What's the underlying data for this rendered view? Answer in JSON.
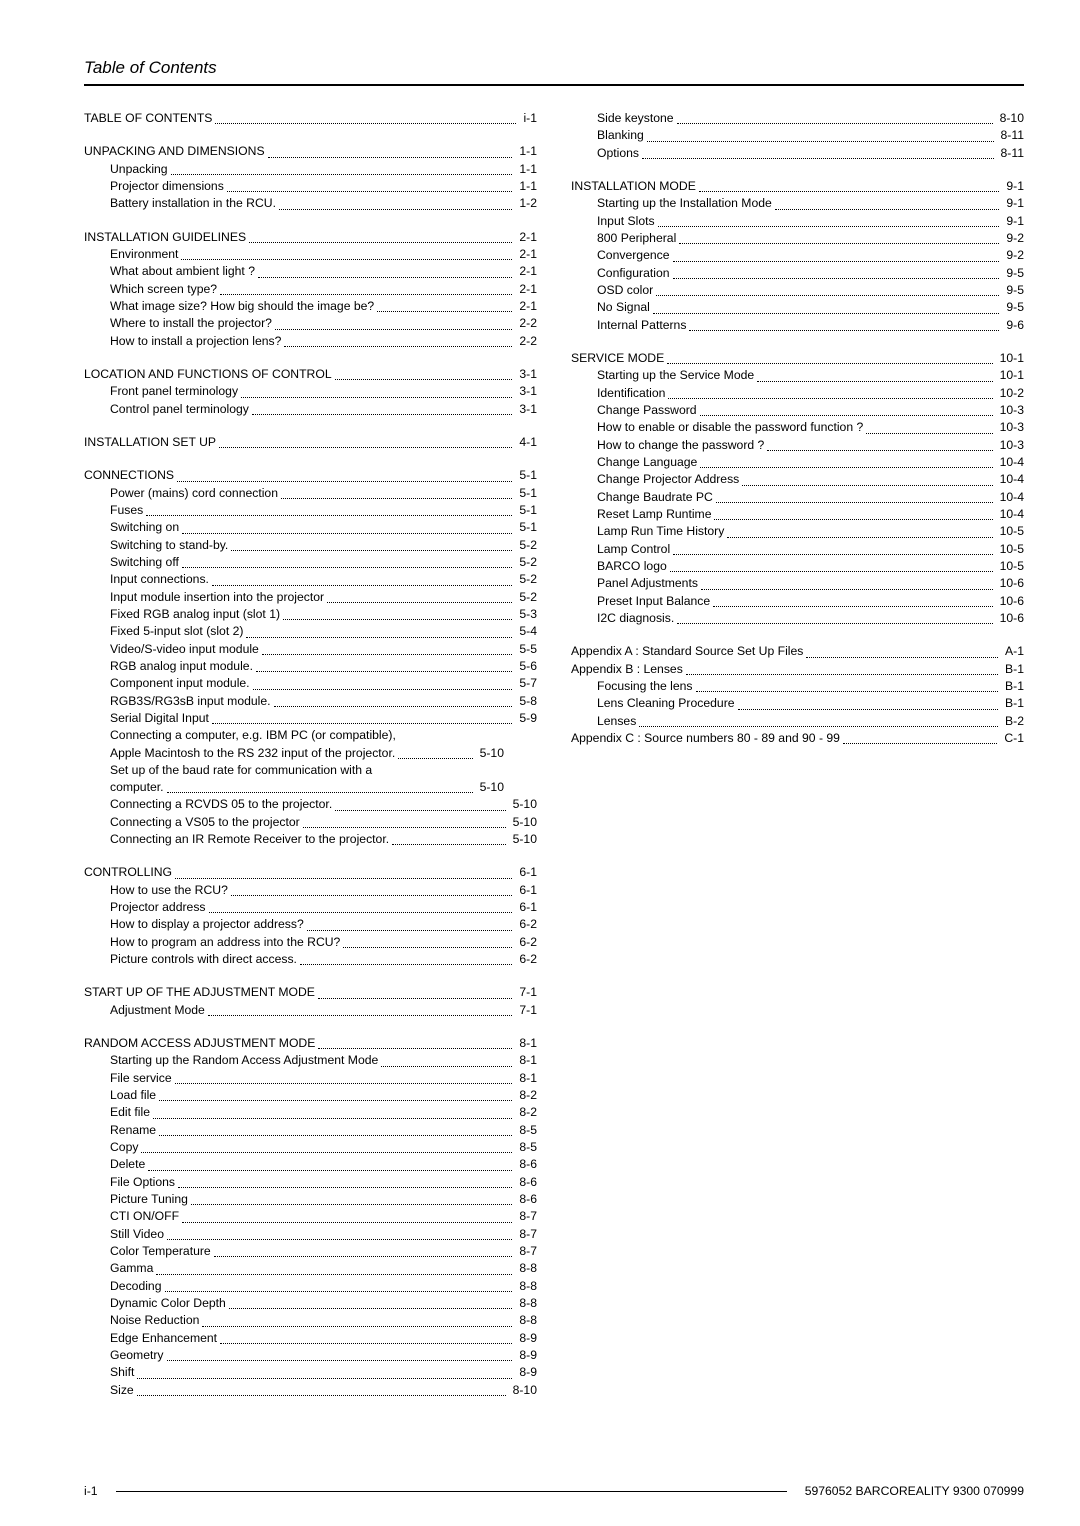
{
  "header": {
    "title": "Table of Contents"
  },
  "footer": {
    "left": "i-1",
    "right": "5976052 BARCOREALITY 9300 070999"
  },
  "left_col": [
    {
      "type": "section",
      "rows": [
        {
          "level": 0,
          "label": "TABLE OF CONTENTS",
          "page": "i-1"
        }
      ]
    },
    {
      "type": "section",
      "rows": [
        {
          "level": 0,
          "label": "UNPACKING AND DIMENSIONS",
          "page": "1-1"
        },
        {
          "level": 1,
          "label": "Unpacking",
          "page": "1-1"
        },
        {
          "level": 1,
          "label": "Projector dimensions",
          "page": "1-1"
        },
        {
          "level": 1,
          "label": "Battery installation in the RCU.",
          "page": "1-2"
        }
      ]
    },
    {
      "type": "section",
      "rows": [
        {
          "level": 0,
          "label": "INSTALLATION GUIDELINES",
          "page": "2-1"
        },
        {
          "level": 1,
          "label": "Environment",
          "page": "2-1"
        },
        {
          "level": 1,
          "label": "What about ambient light ?",
          "page": "2-1"
        },
        {
          "level": 1,
          "label": "Which screen type?",
          "page": "2-1"
        },
        {
          "level": 1,
          "label": "What image size?  How big should the image be?",
          "page": "2-1"
        },
        {
          "level": 1,
          "label": "Where to install the projector?",
          "page": "2-2"
        },
        {
          "level": 1,
          "label": "How to install a projection lens?",
          "page": "2-2"
        }
      ]
    },
    {
      "type": "section",
      "rows": [
        {
          "level": 0,
          "label": "LOCATION AND FUNCTIONS OF CONTROL",
          "page": "3-1"
        },
        {
          "level": 1,
          "label": "Front panel terminology",
          "page": "3-1"
        },
        {
          "level": 1,
          "label": "Control panel terminology",
          "page": "3-1"
        }
      ]
    },
    {
      "type": "section",
      "rows": [
        {
          "level": 0,
          "label": "INSTALLATION SET UP",
          "page": "4-1"
        }
      ]
    },
    {
      "type": "section",
      "rows": [
        {
          "level": 0,
          "label": "CONNECTIONS",
          "page": "5-1"
        },
        {
          "level": 1,
          "label": "Power (mains) cord connection",
          "page": "5-1"
        },
        {
          "level": 1,
          "label": "Fuses",
          "page": "5-1"
        },
        {
          "level": 1,
          "label": "Switching on",
          "page": "5-1"
        },
        {
          "level": 1,
          "label": "Switching to stand-by.",
          "page": "5-2"
        },
        {
          "level": 1,
          "label": "Switching off",
          "page": "5-2"
        },
        {
          "level": 1,
          "label": "Input connections.",
          "page": "5-2"
        },
        {
          "level": 1,
          "label": "Input module insertion into the projector",
          "page": "5-2"
        },
        {
          "level": 1,
          "label": "Fixed RGB analog input (slot 1)",
          "page": "5-3"
        },
        {
          "level": 1,
          "label": "Fixed 5-input slot (slot 2)",
          "page": "5-4"
        },
        {
          "level": 1,
          "label": "Video/S-video input module",
          "page": "5-5"
        },
        {
          "level": 1,
          "label": "RGB analog input module.",
          "page": "5-6"
        },
        {
          "level": 1,
          "label": "Component input module.",
          "page": "5-7"
        },
        {
          "level": 1,
          "label": "RGB3S/RG3sB input module.",
          "page": "5-8"
        },
        {
          "level": 1,
          "label": "Serial Digital Input",
          "page": "5-9"
        },
        {
          "level": 1,
          "multiline": true,
          "lines": [
            "Connecting a computer, e.g. IBM PC (or compatible),",
            "Apple Macintosh to the RS 232 input of the projector."
          ],
          "page": "5-10"
        },
        {
          "level": 1,
          "multiline": true,
          "lines": [
            "Set up of the baud rate  for communication with a",
            "computer."
          ],
          "page": "5-10"
        },
        {
          "level": 1,
          "label": "Connecting a RCVDS 05 to the projector.",
          "page": "5-10"
        },
        {
          "level": 1,
          "label": "Connecting a VS05 to the projector",
          "page": "5-10"
        },
        {
          "level": 1,
          "label": "Connecting an IR Remote Receiver to the projector.",
          "page": "5-10"
        }
      ]
    },
    {
      "type": "section",
      "rows": [
        {
          "level": 0,
          "label": "CONTROLLING",
          "page": "6-1"
        },
        {
          "level": 1,
          "label": "How to use the RCU?",
          "page": "6-1"
        },
        {
          "level": 1,
          "label": "Projector address",
          "page": "6-1"
        },
        {
          "level": 1,
          "label": "How to display a projector address?",
          "page": "6-2"
        },
        {
          "level": 1,
          "label": "How to program an address into the RCU?",
          "page": "6-2"
        },
        {
          "level": 1,
          "label": "Picture controls with direct access.",
          "page": "6-2"
        }
      ]
    },
    {
      "type": "section",
      "rows": [
        {
          "level": 0,
          "label": "START UP OF THE ADJUSTMENT MODE",
          "page": "7-1"
        },
        {
          "level": 1,
          "label": "Adjustment Mode",
          "page": "7-1"
        }
      ]
    },
    {
      "type": "section",
      "rows": [
        {
          "level": 0,
          "label": "RANDOM ACCESS ADJUSTMENT MODE",
          "page": "8-1"
        },
        {
          "level": 1,
          "label": "Starting up the Random Access Adjustment Mode",
          "page": "8-1"
        },
        {
          "level": 1,
          "label": "File service",
          "page": "8-1"
        },
        {
          "level": 1,
          "label": "Load file",
          "page": "8-2"
        },
        {
          "level": 1,
          "label": "Edit file",
          "page": "8-2"
        },
        {
          "level": 1,
          "label": "Rename",
          "page": "8-5"
        },
        {
          "level": 1,
          "label": "Copy",
          "page": "8-5"
        },
        {
          "level": 1,
          "label": "Delete",
          "page": "8-6"
        },
        {
          "level": 1,
          "label": "File Options",
          "page": "8-6"
        },
        {
          "level": 1,
          "label": "Picture Tuning",
          "page": "8-6"
        },
        {
          "level": 1,
          "label": "CTI ON/OFF",
          "page": "8-7"
        },
        {
          "level": 1,
          "label": "Still Video",
          "page": "8-7"
        },
        {
          "level": 1,
          "label": "Color Temperature",
          "page": "8-7"
        },
        {
          "level": 1,
          "label": "Gamma",
          "page": "8-8"
        },
        {
          "level": 1,
          "label": "Decoding",
          "page": "8-8"
        },
        {
          "level": 1,
          "label": "Dynamic Color Depth",
          "page": "8-8"
        },
        {
          "level": 1,
          "label": "Noise Reduction",
          "page": "8-8"
        },
        {
          "level": 1,
          "label": "Edge Enhancement",
          "page": "8-9"
        },
        {
          "level": 1,
          "label": "Geometry",
          "page": "8-9"
        },
        {
          "level": 1,
          "label": "Shift",
          "page": "8-9"
        },
        {
          "level": 1,
          "label": "Size",
          "page": "8-10"
        }
      ]
    }
  ],
  "right_col": [
    {
      "type": "section",
      "rows": [
        {
          "level": 1,
          "label": "Side keystone",
          "page": "8-10"
        },
        {
          "level": 1,
          "label": "Blanking",
          "page": "8-11"
        },
        {
          "level": 1,
          "label": "Options",
          "page": "8-11"
        }
      ]
    },
    {
      "type": "section",
      "rows": [
        {
          "level": 0,
          "label": "INSTALLATION MODE",
          "page": "9-1"
        },
        {
          "level": 1,
          "label": "Starting up the Installation Mode",
          "page": "9-1"
        },
        {
          "level": 1,
          "label": "Input Slots",
          "page": "9-1"
        },
        {
          "level": 1,
          "label": "800 Peripheral",
          "page": "9-2"
        },
        {
          "level": 1,
          "label": "Convergence",
          "page": "9-2"
        },
        {
          "level": 1,
          "label": "Configuration",
          "page": "9-5"
        },
        {
          "level": 1,
          "label": "OSD color",
          "page": "9-5"
        },
        {
          "level": 1,
          "label": "No Signal",
          "page": "9-5"
        },
        {
          "level": 1,
          "label": "Internal Patterns",
          "page": "9-6"
        }
      ]
    },
    {
      "type": "section",
      "rows": [
        {
          "level": 0,
          "label": "SERVICE MODE",
          "page": "10-1"
        },
        {
          "level": 1,
          "label": "Starting up the Service Mode",
          "page": "10-1"
        },
        {
          "level": 1,
          "label": "Identification",
          "page": "10-2"
        },
        {
          "level": 1,
          "label": "Change Password",
          "page": "10-3"
        },
        {
          "level": 1,
          "label": "How to enable or disable the password function ?",
          "page": "10-3"
        },
        {
          "level": 1,
          "label": "How to change the password ?",
          "page": "10-3"
        },
        {
          "level": 1,
          "label": "Change Language",
          "page": "10-4"
        },
        {
          "level": 1,
          "label": "Change Projector Address",
          "page": "10-4"
        },
        {
          "level": 1,
          "label": "Change Baudrate PC",
          "page": "10-4"
        },
        {
          "level": 1,
          "label": "Reset Lamp Runtime",
          "page": "10-4"
        },
        {
          "level": 1,
          "label": "Lamp Run Time History",
          "page": "10-5"
        },
        {
          "level": 1,
          "label": "Lamp Control",
          "page": "10-5"
        },
        {
          "level": 1,
          "label": "BARCO logo",
          "page": "10-5"
        },
        {
          "level": 1,
          "label": "Panel Adjustments",
          "page": "10-6"
        },
        {
          "level": 1,
          "label": "Preset Input Balance",
          "page": "10-6"
        },
        {
          "level": 1,
          "label": "I2C diagnosis.",
          "page": "10-6"
        }
      ]
    },
    {
      "type": "section",
      "rows": [
        {
          "level": 0,
          "label": "Appendix A : Standard Source Set Up Files",
          "page": "A-1"
        },
        {
          "level": 0,
          "label": "Appendix B : Lenses",
          "page": "B-1"
        },
        {
          "level": 1,
          "label": "Focusing the lens",
          "page": "B-1"
        },
        {
          "level": 1,
          "label": "Lens Cleaning Procedure",
          "page": "B-1"
        },
        {
          "level": 1,
          "label": "Lenses",
          "page": "B-2"
        },
        {
          "level": 0,
          "label": "Appendix C : Source numbers 80 - 89 and 90 - 99",
          "page": "C-1"
        }
      ]
    }
  ]
}
